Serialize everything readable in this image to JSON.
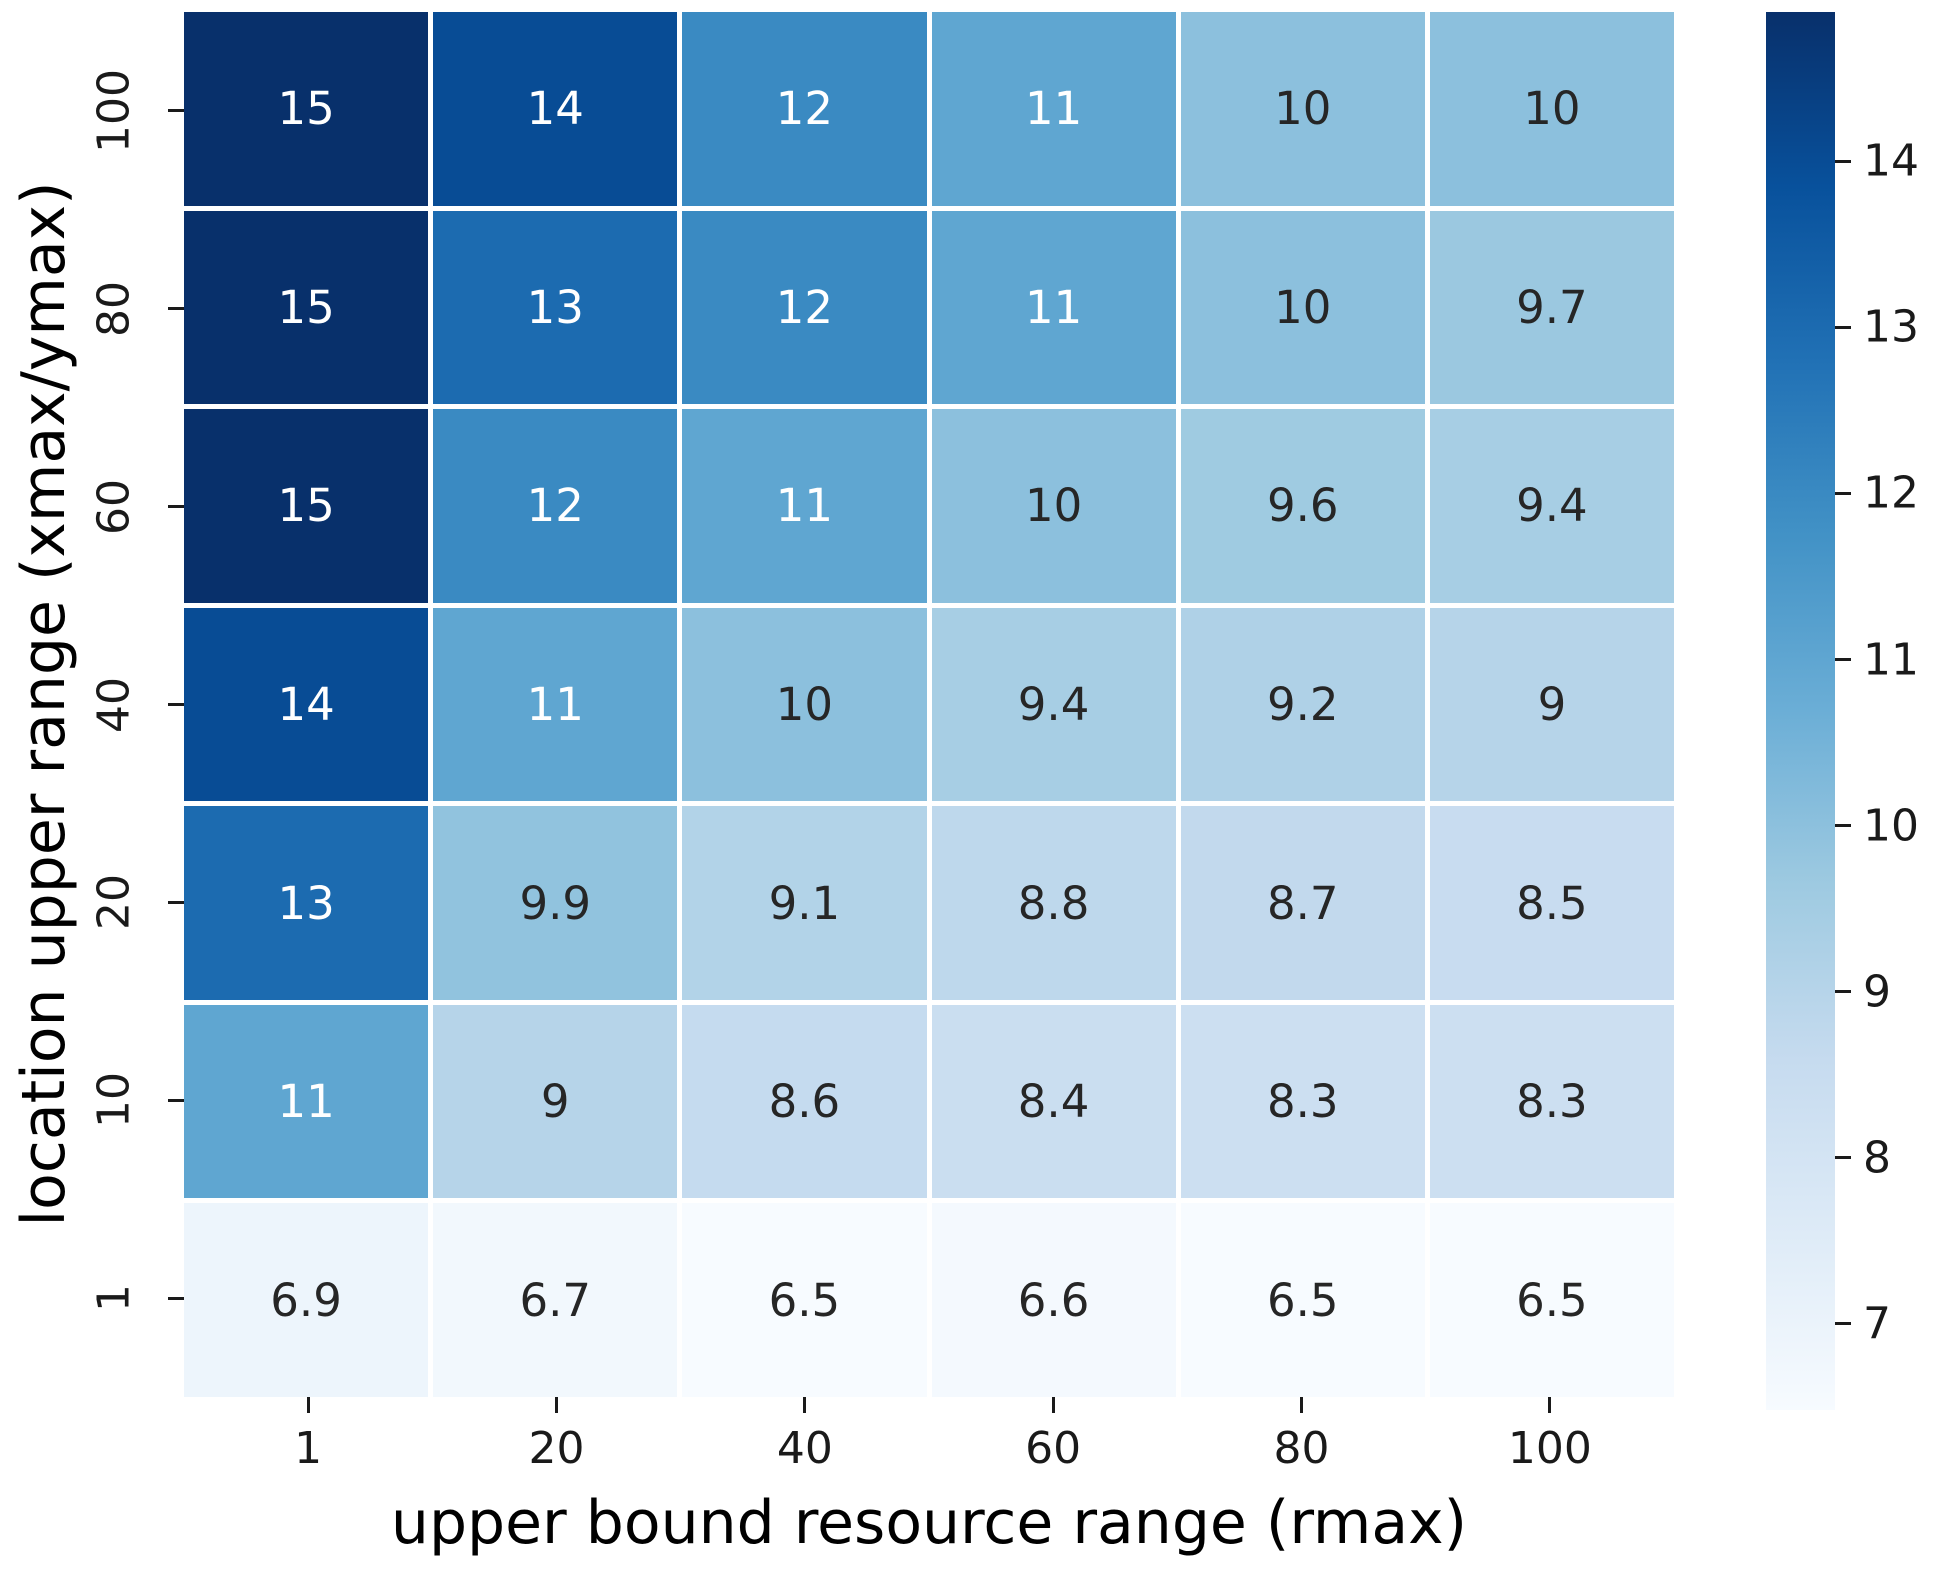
{
  "chart_data": {
    "type": "heatmap",
    "title": "",
    "xlabel": "upper bound resource range (rmax)",
    "ylabel": "location upper range (xmax/ymax)",
    "x_categories": [
      "1",
      "20",
      "40",
      "60",
      "80",
      "100"
    ],
    "y_categories": [
      "100",
      "80",
      "60",
      "40",
      "20",
      "10",
      "1"
    ],
    "values": [
      [
        15,
        14,
        12,
        11,
        10,
        10
      ],
      [
        15,
        13,
        12,
        11,
        10,
        9.7
      ],
      [
        15,
        12,
        11,
        10,
        9.6,
        9.4
      ],
      [
        14,
        11,
        10,
        9.4,
        9.2,
        9
      ],
      [
        13,
        9.9,
        9.1,
        8.8,
        8.7,
        8.5
      ],
      [
        11,
        9,
        8.6,
        8.4,
        8.3,
        8.3
      ],
      [
        6.9,
        6.7,
        6.5,
        6.6,
        6.5,
        6.5
      ]
    ],
    "labels": [
      [
        "15",
        "14",
        "12",
        "11",
        "10",
        "10"
      ],
      [
        "15",
        "13",
        "12",
        "11",
        "10",
        "9.7"
      ],
      [
        "15",
        "12",
        "11",
        "10",
        "9.6",
        "9.4"
      ],
      [
        "14",
        "11",
        "10",
        "9.4",
        "9.2",
        "9"
      ],
      [
        "13",
        "9.9",
        "9.1",
        "8.8",
        "8.7",
        "8.5"
      ],
      [
        "11",
        "9",
        "8.6",
        "8.4",
        "8.3",
        "8.3"
      ],
      [
        "6.9",
        "6.7",
        "6.5",
        "6.6",
        "6.5",
        "6.5"
      ]
    ],
    "colormap_name": "Blues",
    "colormap_stops": [
      "#f7fbff",
      "#deebf7",
      "#c6dbef",
      "#9ecae1",
      "#6baed6",
      "#4292c6",
      "#2171b5",
      "#08519c",
      "#08306b"
    ],
    "vmin": 6.48,
    "vmax": 14.9,
    "colorbar_ticks": [
      "14",
      "13",
      "12",
      "11",
      "10",
      "9",
      "8",
      "7"
    ],
    "annotation_color_light": "#ffffff",
    "annotation_color_dark": "#262626",
    "luminance_threshold": 0.408,
    "grid_line_color": "#ffffff",
    "legend_position": "right-colorbar",
    "grid": "white cell separators, no axes frame"
  }
}
